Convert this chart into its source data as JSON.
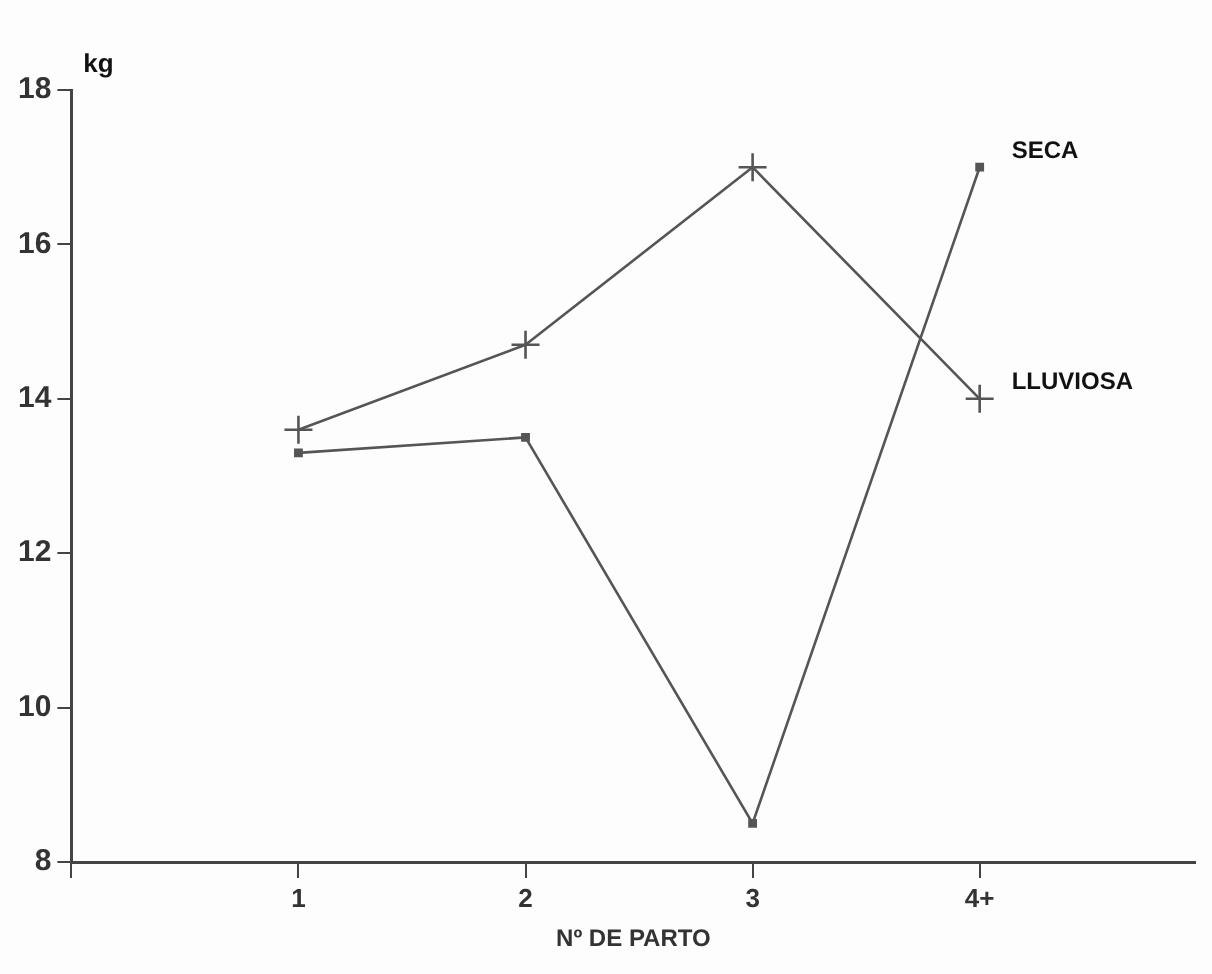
{
  "chart_data": {
    "type": "line",
    "xlabel": "Nº DE PARTO",
    "ylabel": "kg",
    "categories": [
      "1",
      "2",
      "3",
      "4+"
    ],
    "series": [
      {
        "name": "SECA",
        "color": "#555555",
        "marker": "square",
        "values": [
          13.3,
          13.5,
          8.5,
          17.0
        ]
      },
      {
        "name": "LLUVIOSA",
        "color": "#555555",
        "marker": "cross",
        "values": [
          13.6,
          14.7,
          17.0,
          14.0
        ]
      }
    ],
    "ylim": [
      8,
      18
    ],
    "yticks": [
      8,
      10,
      12,
      14,
      16,
      18
    ],
    "grid": false,
    "legend": false,
    "line_style": "solid"
  }
}
